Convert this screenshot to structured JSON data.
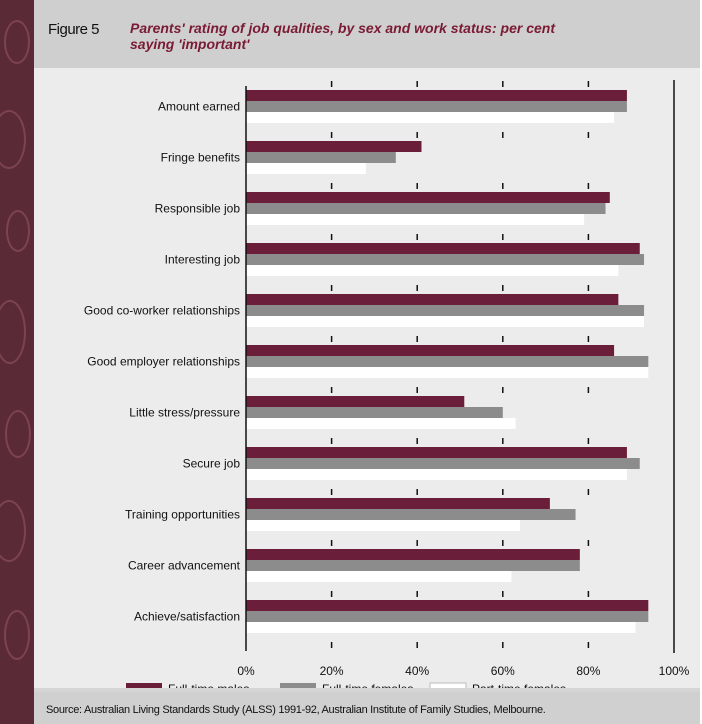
{
  "figure_label": "Figure 5",
  "title": "Parents' rating of job qualities, by sex and work status: per cent saying 'important'",
  "source": "Source: Australian Living Standards Study (ALSS) 1991-92, Australian Institute of Family Studies, Melbourne.",
  "colors": {
    "sidebar": "#5a2a36",
    "ft_males": "#6b1e3a",
    "ft_females": "#8c8c8c",
    "pt_females": "#ffffff"
  },
  "chart_data": {
    "type": "bar",
    "orientation": "horizontal",
    "categories": [
      "Amount earned",
      "Fringe benefits",
      "Responsible job",
      "Interesting job",
      "Good co-worker relationships",
      "Good employer relationships",
      "Little stress/pressure",
      "Secure job",
      "Training opportunities",
      "Career advancement",
      "Achieve/satisfaction"
    ],
    "series": [
      {
        "name": "Full-time males",
        "color": "#6b1e3a",
        "values": [
          89,
          41,
          85,
          92,
          87,
          86,
          51,
          89,
          71,
          78,
          94
        ]
      },
      {
        "name": "Full-time females",
        "color": "#8c8c8c",
        "values": [
          89,
          35,
          84,
          93,
          93,
          94,
          60,
          92,
          77,
          78,
          94
        ]
      },
      {
        "name": "Part-time females",
        "color": "#ffffff",
        "values": [
          86,
          28,
          79,
          87,
          93,
          94,
          63,
          89,
          64,
          62,
          91
        ]
      }
    ],
    "xlim": [
      0,
      100
    ],
    "xticks": [
      "0%",
      "20%",
      "40%",
      "60%",
      "80%",
      "100%"
    ],
    "legend_position": "bottom"
  }
}
